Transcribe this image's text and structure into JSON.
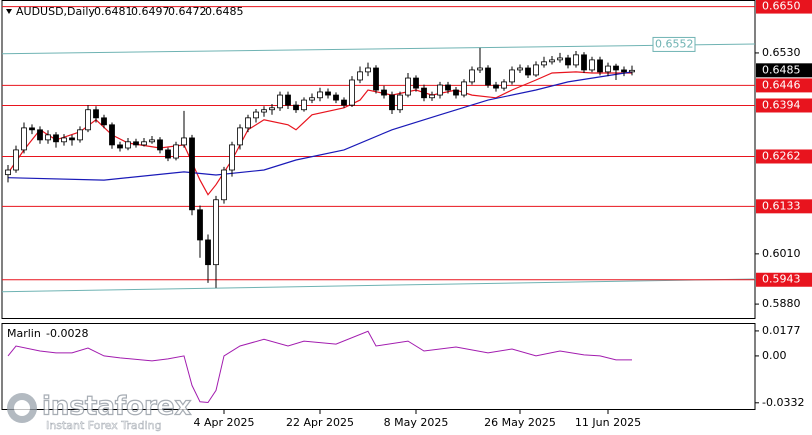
{
  "chart_data": {
    "type": "candlestick",
    "title": "AUDUSD,Daily",
    "xlim": [
      -0.75,
      93.375
    ],
    "ylim": [
      0.5844,
      0.6667
    ],
    "yticks": [
      {
        "value": 0.653,
        "label": "0.6530"
      },
      {
        "value": 0.601,
        "label": "0.6010"
      },
      {
        "value": 0.588,
        "label": "0.5880"
      }
    ],
    "xticks": [
      {
        "value": 27,
        "label": "4 Apr 2025"
      },
      {
        "value": 39,
        "label": "22 Apr 2025"
      },
      {
        "value": 51,
        "label": "8 May 2025"
      },
      {
        "value": 64,
        "label": "26 May 2025"
      },
      {
        "value": 75,
        "label": "11 Jun 2025"
      }
    ],
    "current_price": 0.6485,
    "levels": [
      {
        "value": 0.665,
        "label": "0.6650"
      },
      0.6446,
      0.6394,
      0.6262,
      0.6133,
      0.5943
    ],
    "level_color": "#e8141e",
    "channel": [
      {
        "color": "#6fb3b3",
        "values": [
          0.6528,
          0.6553
        ],
        "price_label": 0.6552
      },
      {
        "color": "#6fb3b3",
        "values": [
          0.5912,
          0.5945
        ]
      }
    ],
    "series": [
      {
        "color": "#e8141e",
        "x": [
          0,
          2,
          4,
          6,
          9,
          11,
          13,
          15,
          19,
          22,
          24,
          25,
          26,
          28,
          30,
          32,
          35,
          36,
          38,
          42,
          44,
          45,
          48,
          51,
          53,
          56,
          58,
          61,
          63,
          66,
          68,
          71,
          73,
          78
        ],
        "values": [
          0.6219,
          0.6279,
          0.6331,
          0.6305,
          0.6326,
          0.6357,
          0.6318,
          0.6297,
          0.6284,
          0.6292,
          0.6201,
          0.6163,
          0.6189,
          0.6253,
          0.6331,
          0.6357,
          0.6344,
          0.6331,
          0.637,
          0.6388,
          0.6408,
          0.6434,
          0.6421,
          0.6434,
          0.6421,
          0.6434,
          0.6421,
          0.6414,
          0.6434,
          0.646,
          0.6478,
          0.6481,
          0.6478,
          0.6478
        ]
      },
      {
        "color": "#1a1ab8",
        "x": [
          0,
          12,
          22,
          26,
          32,
          36,
          42,
          48,
          54,
          60,
          66,
          70,
          74,
          78
        ],
        "values": [
          0.6207,
          0.6201,
          0.6222,
          0.6214,
          0.6227,
          0.6253,
          0.6279,
          0.6331,
          0.637,
          0.6408,
          0.6434,
          0.6455,
          0.6468,
          0.6481
        ]
      }
    ],
    "candles": [
      [
        0.6215,
        0.624,
        0.6195,
        0.6227
      ],
      [
        0.6227,
        0.629,
        0.622,
        0.6279
      ],
      [
        0.6279,
        0.635,
        0.627,
        0.6336
      ],
      [
        0.6336,
        0.6345,
        0.632,
        0.6331
      ],
      [
        0.6331,
        0.634,
        0.6295,
        0.6305
      ],
      [
        0.6305,
        0.633,
        0.6295,
        0.6318
      ],
      [
        0.6318,
        0.6325,
        0.6285,
        0.63
      ],
      [
        0.63,
        0.632,
        0.629,
        0.631
      ],
      [
        0.631,
        0.6318,
        0.629,
        0.6305
      ],
      [
        0.6305,
        0.634,
        0.6298,
        0.6331
      ],
      [
        0.6331,
        0.6395,
        0.6325,
        0.6383
      ],
      [
        0.6383,
        0.6392,
        0.635,
        0.6362
      ],
      [
        0.6362,
        0.637,
        0.6335,
        0.6344
      ],
      [
        0.6344,
        0.635,
        0.6282,
        0.6292
      ],
      [
        0.6292,
        0.63,
        0.6275,
        0.6284
      ],
      [
        0.6284,
        0.631,
        0.6278,
        0.63
      ],
      [
        0.63,
        0.6308,
        0.6285,
        0.6292
      ],
      [
        0.6292,
        0.631,
        0.6288,
        0.63
      ],
      [
        0.63,
        0.6315,
        0.6295,
        0.6305
      ],
      [
        0.6305,
        0.6312,
        0.627,
        0.6279
      ],
      [
        0.6279,
        0.6285,
        0.625,
        0.6258
      ],
      [
        0.6258,
        0.63,
        0.6252,
        0.6292
      ],
      [
        0.6292,
        0.638,
        0.6285,
        0.631
      ],
      [
        0.631,
        0.6318,
        0.611,
        0.6124
      ],
      [
        0.6124,
        0.6135,
        0.6,
        0.6046
      ],
      [
        0.6046,
        0.606,
        0.5935,
        0.5982
      ],
      [
        0.5982,
        0.616,
        0.5922,
        0.615
      ],
      [
        0.615,
        0.6235,
        0.614,
        0.6227
      ],
      [
        0.6227,
        0.63,
        0.621,
        0.6292
      ],
      [
        0.6292,
        0.6345,
        0.628,
        0.6336
      ],
      [
        0.6336,
        0.637,
        0.6325,
        0.6362
      ],
      [
        0.6362,
        0.6385,
        0.635,
        0.6377
      ],
      [
        0.6377,
        0.6392,
        0.6365,
        0.6383
      ],
      [
        0.6383,
        0.6398,
        0.637,
        0.6388
      ],
      [
        0.6388,
        0.643,
        0.638,
        0.6421
      ],
      [
        0.6421,
        0.643,
        0.6385,
        0.6395
      ],
      [
        0.6395,
        0.6405,
        0.6375,
        0.6383
      ],
      [
        0.6383,
        0.6415,
        0.6378,
        0.6408
      ],
      [
        0.6408,
        0.6425,
        0.64,
        0.6414
      ],
      [
        0.6414,
        0.644,
        0.6405,
        0.6429
      ],
      [
        0.6429,
        0.6438,
        0.6412,
        0.6421
      ],
      [
        0.6421,
        0.6428,
        0.64,
        0.6408
      ],
      [
        0.6408,
        0.6415,
        0.6388,
        0.6395
      ],
      [
        0.6395,
        0.647,
        0.639,
        0.646
      ],
      [
        0.646,
        0.6495,
        0.6452,
        0.6481
      ],
      [
        0.6481,
        0.6505,
        0.647,
        0.6491
      ],
      [
        0.6491,
        0.6498,
        0.6425,
        0.6434
      ],
      [
        0.6434,
        0.6445,
        0.6412,
        0.6421
      ],
      [
        0.6421,
        0.643,
        0.6372,
        0.6383
      ],
      [
        0.6383,
        0.643,
        0.6375,
        0.6421
      ],
      [
        0.6421,
        0.6478,
        0.6415,
        0.6465
      ],
      [
        0.6465,
        0.6472,
        0.643,
        0.6439
      ],
      [
        0.6439,
        0.6448,
        0.6405,
        0.6414
      ],
      [
        0.6414,
        0.643,
        0.6406,
        0.6421
      ],
      [
        0.6421,
        0.6455,
        0.6412,
        0.6447
      ],
      [
        0.6447,
        0.6455,
        0.6425,
        0.6434
      ],
      [
        0.6434,
        0.6442,
        0.6412,
        0.6421
      ],
      [
        0.6421,
        0.6462,
        0.6415,
        0.6455
      ],
      [
        0.6455,
        0.6495,
        0.6448,
        0.6486
      ],
      [
        0.6486,
        0.6543,
        0.6478,
        0.6491
      ],
      [
        0.6491,
        0.6498,
        0.644,
        0.6447
      ],
      [
        0.6447,
        0.6455,
        0.643,
        0.6439
      ],
      [
        0.6439,
        0.6462,
        0.6432,
        0.6455
      ],
      [
        0.6455,
        0.6495,
        0.6448,
        0.6486
      ],
      [
        0.6486,
        0.65,
        0.6478,
        0.6491
      ],
      [
        0.6491,
        0.6498,
        0.6465,
        0.6473
      ],
      [
        0.6473,
        0.6508,
        0.6468,
        0.6499
      ],
      [
        0.6499,
        0.652,
        0.6492,
        0.6507
      ],
      [
        0.6507,
        0.6522,
        0.65,
        0.6512
      ],
      [
        0.6512,
        0.653,
        0.6505,
        0.6517
      ],
      [
        0.6517,
        0.6525,
        0.649,
        0.6499
      ],
      [
        0.6499,
        0.6535,
        0.6492,
        0.6525
      ],
      [
        0.6525,
        0.6532,
        0.6478,
        0.6486
      ],
      [
        0.6486,
        0.652,
        0.648,
        0.6512
      ],
      [
        0.6512,
        0.652,
        0.6472,
        0.6481
      ],
      [
        0.6481,
        0.6505,
        0.647,
        0.6496
      ],
      [
        0.6496,
        0.6502,
        0.646,
        0.6486
      ],
      [
        0.6486,
        0.6495,
        0.647,
        0.6481
      ],
      [
        0.6481,
        0.6497,
        0.6472,
        0.6485
      ]
    ],
    "indicator": {
      "name": "Marlin",
      "value": -0.0028,
      "color": "#a21caf",
      "ylim": [
        -0.0383,
        0.0226
      ],
      "yticks": [
        0.0177,
        {
          "value": 0,
          "label": "0.00"
        },
        -0.0332
      ],
      "x": [
        0,
        1,
        4,
        6,
        8,
        10,
        12,
        14,
        18,
        20,
        22,
        23,
        24,
        25,
        26,
        27,
        29,
        32,
        35,
        37,
        41,
        45,
        46,
        50,
        52,
        56,
        60,
        63,
        66,
        69,
        72,
        74,
        76,
        78
      ],
      "values": [
        0,
        0.007,
        0.0035,
        0.0021,
        0.0021,
        0.0056,
        0,
        -0.0014,
        -0.0035,
        -0.0021,
        0,
        -0.0209,
        -0.0325,
        -0.033,
        -0.0244,
        0,
        0.007,
        0.0118,
        0.007,
        0.0105,
        0.0084,
        0.0174,
        0.007,
        0.0105,
        0.0035,
        0.0063,
        0.0021,
        0.0049,
        0,
        0.0035,
        0.0007,
        0,
        -0.0028,
        -0.0028
      ]
    },
    "watermark": {
      "brand": "instaforex",
      "tagline": "Instant Forex Trading"
    }
  }
}
